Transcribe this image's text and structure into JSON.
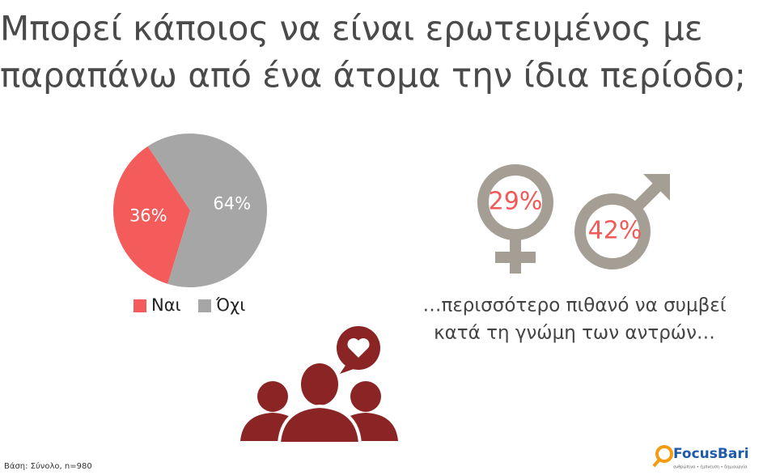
{
  "chart_data": {
    "type": "pie",
    "title_lines": [
      "Μπορεί κάποιος να είναι ερωτευμένος με",
      "παραπάνω από ένα άτομα την ίδια περίοδο;"
    ],
    "categories": [
      "Ναι",
      "Όχι"
    ],
    "values": [
      36,
      64
    ],
    "value_labels": [
      "36%",
      "64%"
    ],
    "colors": [
      "#f45b5b",
      "#a6a6a6"
    ],
    "legend": "bottom"
  },
  "gender": {
    "female": "29%",
    "male": "42%"
  },
  "caption_lines": [
    "…περισσότερο πιθανό να συμβεί",
    "κατά τη γνώμη των αντρών…"
  ],
  "footnote": "Βάση: Σύνολο, n=980",
  "logo": {
    "name": "FocusBari",
    "tagline": "ανθρώπινα • έμπνευση • δημιουργία"
  }
}
